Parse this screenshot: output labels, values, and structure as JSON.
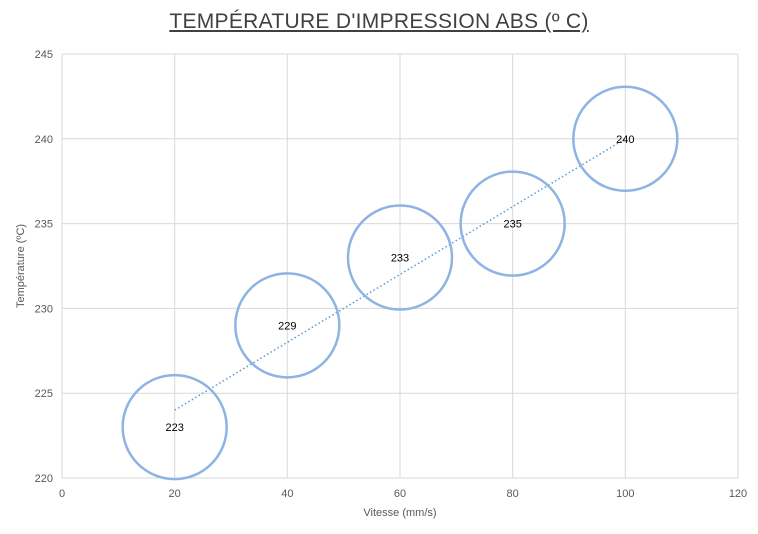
{
  "chart_data": {
    "type": "scatter",
    "title": "TEMPÉRATURE D'IMPRESSION ABS (º C)",
    "xlabel": "Vitesse (mm/s)",
    "ylabel": "Température (ºC)",
    "xlim": [
      0,
      120
    ],
    "ylim": [
      220,
      245
    ],
    "xticks": [
      0,
      20,
      40,
      60,
      80,
      100,
      120
    ],
    "yticks": [
      220,
      225,
      230,
      235,
      240,
      245
    ],
    "grid": true,
    "legend": "none",
    "marker": "large hollow circle",
    "series": [
      {
        "x": [
          20,
          40,
          60,
          80,
          100
        ],
        "y": [
          223,
          229,
          233,
          235,
          240
        ],
        "data_labels": [
          "223",
          "229",
          "233",
          "235",
          "240"
        ],
        "color": "#8db4e2",
        "trendline": {
          "type": "linear",
          "style": "dotted",
          "color": "#5b9bd5",
          "x_range": [
            20,
            100
          ],
          "y_range": [
            224,
            240
          ]
        }
      }
    ]
  }
}
